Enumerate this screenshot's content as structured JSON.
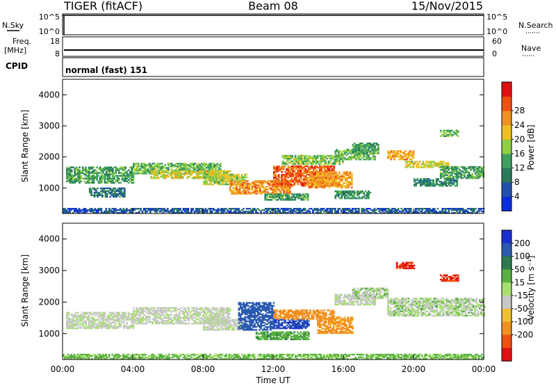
{
  "header": {
    "station": "TIGER (fitACF)",
    "beam": "Beam 08",
    "date": "15/Nov/2015"
  },
  "strips": {
    "nsky": {
      "label": "N.Sky",
      "left_ticks": [
        "10^5",
        "10^0"
      ],
      "right_ticks": [
        "10^5",
        "10^0"
      ],
      "right_label": "N.Search"
    },
    "freq": {
      "label_top": "Freq.",
      "label_unit": "[MHz]",
      "left_ticks": [
        "18",
        "8"
      ],
      "right_ticks": [
        "60",
        "0"
      ],
      "right_label": "Nave",
      "freq_mhz": 10
    },
    "cpid": {
      "label": "CPID",
      "text": "normal (fast) 151"
    }
  },
  "chart_data": [
    {
      "type": "heatmap",
      "name": "power",
      "ylabel": "Slant Range [km]",
      "ylim": [
        180,
        4500
      ],
      "xlim": [
        0,
        24
      ],
      "yticks": [
        "1000",
        "2000",
        "3000",
        "4000"
      ],
      "colorbar": {
        "label": "Power [dB]",
        "ticks": [
          "4",
          "8",
          "12",
          "16",
          "20",
          "24",
          "28"
        ],
        "colors": [
          "#0b2de0",
          "#224fb0",
          "#2a7a5a",
          "#3fa060",
          "#8fcf40",
          "#f0c020",
          "#f09020",
          "#f05010",
          "#e01010"
        ]
      },
      "bands": [
        {
          "t0": 0.2,
          "t1": 4.0,
          "r0": 1150,
          "r1": 1650,
          "level": 12
        },
        {
          "t0": 1.5,
          "t1": 3.5,
          "r0": 700,
          "r1": 1000,
          "level": 8
        },
        {
          "t0": 4.0,
          "t1": 9.0,
          "r0": 1450,
          "r1": 1800,
          "level": 14
        },
        {
          "t0": 5.0,
          "t1": 9.5,
          "r0": 1300,
          "r1": 1550,
          "level": 18
        },
        {
          "t0": 8.0,
          "t1": 10.5,
          "r0": 1100,
          "r1": 1450,
          "level": 17
        },
        {
          "t0": 9.5,
          "t1": 13.0,
          "r0": 800,
          "r1": 1250,
          "level": 23
        },
        {
          "t0": 12.0,
          "t1": 15.5,
          "r0": 1050,
          "r1": 1700,
          "level": 26
        },
        {
          "t0": 14.0,
          "t1": 16.5,
          "r0": 1000,
          "r1": 1500,
          "level": 22
        },
        {
          "t0": 12.5,
          "t1": 16.0,
          "r0": 1750,
          "r1": 2050,
          "level": 15
        },
        {
          "t0": 15.5,
          "t1": 17.8,
          "r0": 1900,
          "r1": 2250,
          "level": 14
        },
        {
          "t0": 16.5,
          "t1": 18.0,
          "r0": 2100,
          "r1": 2450,
          "level": 12
        },
        {
          "t0": 11.5,
          "t1": 14.0,
          "r0": 600,
          "r1": 800,
          "level": 12
        },
        {
          "t0": 15.5,
          "t1": 17.5,
          "r0": 650,
          "r1": 900,
          "level": 11
        },
        {
          "t0": 18.5,
          "t1": 20.0,
          "r0": 1900,
          "r1": 2200,
          "level": 22
        },
        {
          "t0": 19.5,
          "t1": 22.0,
          "r0": 1650,
          "r1": 1850,
          "level": 18
        },
        {
          "t0": 21.5,
          "t1": 24.0,
          "r0": 1300,
          "r1": 1700,
          "level": 12
        },
        {
          "t0": 20.0,
          "t1": 22.5,
          "r0": 1050,
          "r1": 1300,
          "level": 10
        },
        {
          "t0": 21.5,
          "t1": 22.5,
          "r0": 2650,
          "r1": 2850,
          "level": 14
        },
        {
          "t0": 0.0,
          "t1": 24.0,
          "r0": 180,
          "r1": 320,
          "level": 6
        }
      ]
    },
    {
      "type": "heatmap",
      "name": "velocity",
      "ylabel": "Slant Range [km]",
      "xlabel": "Time UT",
      "ylim": [
        180,
        4500
      ],
      "xlim": [
        0,
        24
      ],
      "yticks": [
        "1000",
        "2000",
        "3000",
        "4000"
      ],
      "xticks": [
        "00:00",
        "04:00",
        "08:00",
        "12:00",
        "16:00",
        "20:00",
        "00:00"
      ],
      "colorbar": {
        "label": "Velocity [m s⁻¹]",
        "ticks": [
          "200",
          "100",
          "50",
          "15",
          "-15",
          "-50",
          "-100",
          "-200"
        ],
        "colors": [
          "#1a2fd0",
          "#2a5ab0",
          "#2e7a50",
          "#58b040",
          "#a8e070",
          "#c8c8c8",
          "#f0c030",
          "#f09020",
          "#f05010",
          "#e01010"
        ]
      },
      "bands": [
        {
          "t0": 0.2,
          "t1": 4.0,
          "r0": 1150,
          "r1": 1650,
          "level": 0
        },
        {
          "t0": 4.0,
          "t1": 9.5,
          "r0": 1300,
          "r1": 1800,
          "level": 0
        },
        {
          "t0": 8.0,
          "t1": 10.5,
          "r0": 1100,
          "r1": 1450,
          "level": 0
        },
        {
          "t0": 10.0,
          "t1": 12.0,
          "r0": 1100,
          "r1": 2000,
          "level": 150
        },
        {
          "t0": 12.0,
          "t1": 14.0,
          "r0": 1150,
          "r1": 1450,
          "level": 200
        },
        {
          "t0": 12.0,
          "t1": 15.5,
          "r0": 1450,
          "r1": 1750,
          "level": -80
        },
        {
          "t0": 14.5,
          "t1": 16.5,
          "r0": 1000,
          "r1": 1500,
          "level": -60
        },
        {
          "t0": 11.0,
          "t1": 14.0,
          "r0": 800,
          "r1": 1050,
          "level": 40
        },
        {
          "t0": 15.5,
          "t1": 17.8,
          "r0": 1900,
          "r1": 2250,
          "level": 0
        },
        {
          "t0": 16.5,
          "t1": 18.5,
          "r0": 2100,
          "r1": 2450,
          "level": 5
        },
        {
          "t0": 18.5,
          "t1": 24.0,
          "r0": 1550,
          "r1": 2100,
          "level": 5
        },
        {
          "t0": 19.0,
          "t1": 20.0,
          "r0": 3050,
          "r1": 3250,
          "level": -200
        },
        {
          "t0": 21.5,
          "t1": 22.5,
          "r0": 2650,
          "r1": 2850,
          "level": -200
        },
        {
          "t0": 0.0,
          "t1": 24.0,
          "r0": 180,
          "r1": 320,
          "level": 20
        }
      ]
    }
  ]
}
